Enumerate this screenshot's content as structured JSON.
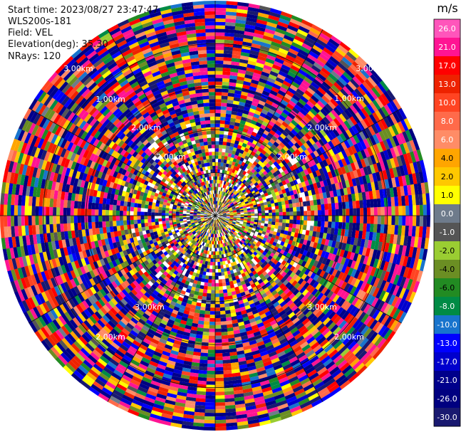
{
  "info": {
    "start_time": "Start time: 2023/08/27 23:47:47",
    "instrument": "WLS200s-181",
    "field": "Field: VEL",
    "elevation": "Elevation(deg): 35.30",
    "nrays": "NRays: 120"
  },
  "colorbar": {
    "unit": "m/s",
    "labels": [
      "26.0",
      "21.0",
      "17.0",
      "13.0",
      "10.0",
      "8.0",
      "6.0",
      "4.0",
      "2.0",
      "1.0",
      "0.0",
      "-1.0",
      "-2.0",
      "-4.0",
      "-6.0",
      "-8.0",
      "-10.0",
      "-13.0",
      "-17.0",
      "-21.0",
      "-26.0",
      "-30.0"
    ],
    "colors": [
      "#ff55bb",
      "#ff1493",
      "#ff0000",
      "#ee2200",
      "#ff4422",
      "#ff6a4a",
      "#ff8c66",
      "#ffa500",
      "#ffc800",
      "#ffff00",
      "#6e7b8b",
      "#555555",
      "#9acd32",
      "#6b8e23",
      "#228b22",
      "#008b45",
      "#1874cd",
      "#0000ff",
      "#0000cd",
      "#00008b",
      "#000080",
      "#191970"
    ]
  },
  "ring_labels": [
    "1.00km",
    "1.00km",
    "2.00km",
    "2.00km",
    "2.00km",
    "2.00km",
    "3.00km",
    "3.00km",
    "3.00km",
    "3.00km",
    "2.00km",
    "2.00km"
  ],
  "chart_data": {
    "type": "heatmap",
    "projection": "polar",
    "n_rays": 120,
    "n_gates": 60,
    "unit": "m/s",
    "value_range": [
      -30.0,
      26.0
    ],
    "range_rings_km": [
      1.0,
      2.0,
      3.0
    ],
    "note_colors": "velocity values mapped through the colorbar scale"
  }
}
